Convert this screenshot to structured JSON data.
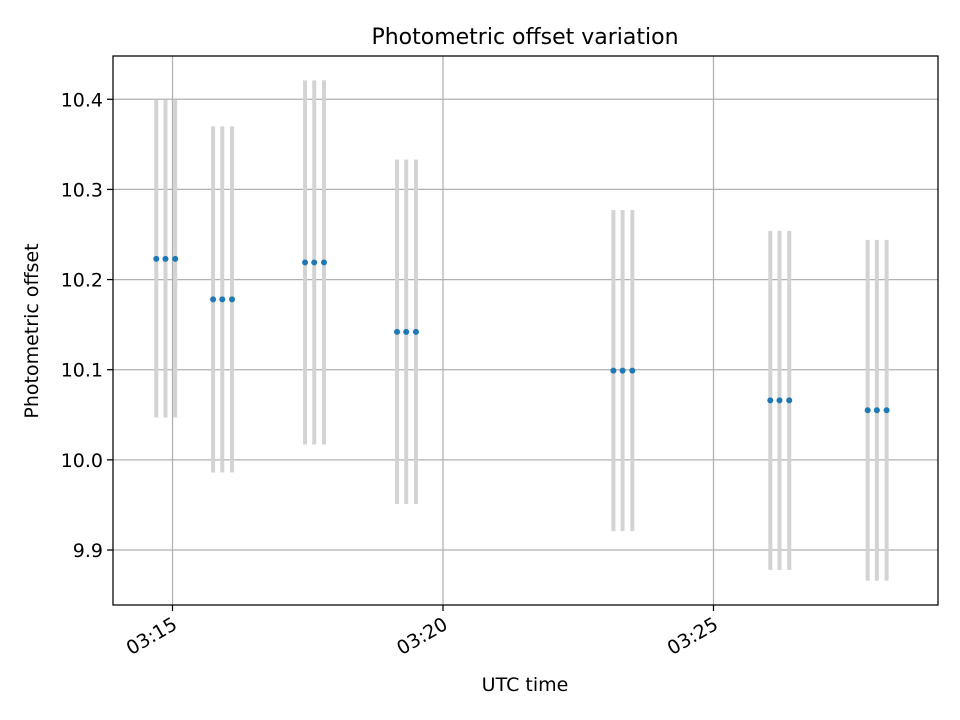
{
  "chart_data": {
    "type": "scatter",
    "title": "Photometric offset variation",
    "xlabel": "UTC time",
    "ylabel": "Photometric offset",
    "x_tick_labels": [
      "03:15",
      "03:20",
      "03:25"
    ],
    "x_ticks_min": [
      15,
      20,
      25
    ],
    "y_ticks": [
      9.9,
      10.0,
      10.1,
      10.2,
      10.3,
      10.4
    ],
    "y_tick_labels": [
      "9.9",
      "10.0",
      "10.1",
      "10.2",
      "10.3",
      "10.4"
    ],
    "xlim_min": [
      13.9,
      29.15
    ],
    "ylim": [
      9.839,
      10.448
    ],
    "grid": true,
    "colors": {
      "point": "#1f77b4",
      "errorbar": "#d3d3d3",
      "grid": "#b0b0b0",
      "axis": "#000000"
    },
    "groups": [
      {
        "x_min": [
          14.7,
          14.87,
          15.05
        ],
        "y": 10.223,
        "yerr": 0.176
      },
      {
        "x_min": [
          15.75,
          15.92,
          16.1
        ],
        "y": 10.178,
        "yerr": 0.192
      },
      {
        "x_min": [
          17.45,
          17.62,
          17.8
        ],
        "y": 10.219,
        "yerr": 0.202
      },
      {
        "x_min": [
          19.15,
          19.32,
          19.5
        ],
        "y": 10.142,
        "yerr": 0.191
      },
      {
        "x_min": [
          23.15,
          23.32,
          23.5
        ],
        "y": 10.099,
        "yerr": 0.178
      },
      {
        "x_min": [
          26.05,
          26.22,
          26.4
        ],
        "y": 10.066,
        "yerr": 0.188
      },
      {
        "x_min": [
          27.85,
          28.02,
          28.2
        ],
        "y": 10.055,
        "yerr": 0.189
      }
    ]
  }
}
